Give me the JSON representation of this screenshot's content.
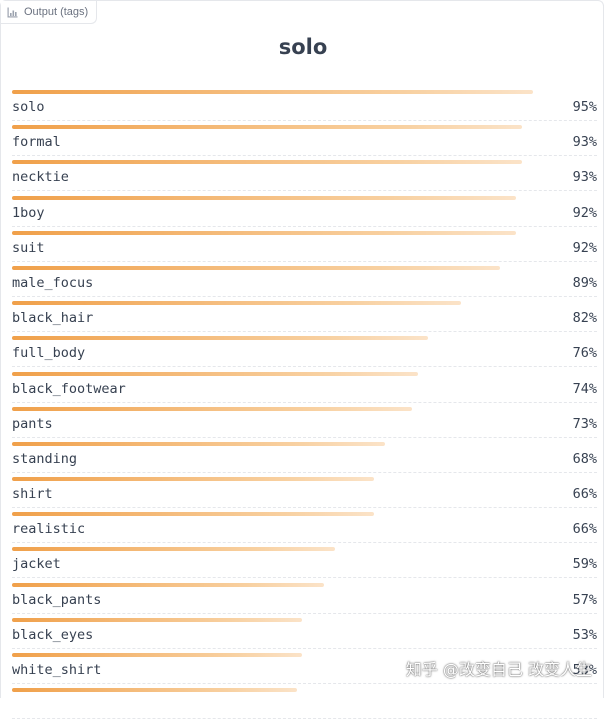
{
  "panel": {
    "tab_label": "Output (tags)",
    "heading": "solo"
  },
  "colors": {
    "bar_start": "#f0a04a",
    "bar_end": "#fbe3c8",
    "text": "#374151"
  },
  "tags": [
    {
      "label": "solo",
      "confidence": 95,
      "percent": "95%"
    },
    {
      "label": "formal",
      "confidence": 93,
      "percent": "93%"
    },
    {
      "label": "necktie",
      "confidence": 93,
      "percent": "93%"
    },
    {
      "label": "1boy",
      "confidence": 92,
      "percent": "92%"
    },
    {
      "label": "suit",
      "confidence": 92,
      "percent": "92%"
    },
    {
      "label": "male_focus",
      "confidence": 89,
      "percent": "89%"
    },
    {
      "label": "black_hair",
      "confidence": 82,
      "percent": "82%"
    },
    {
      "label": "full_body",
      "confidence": 76,
      "percent": "76%"
    },
    {
      "label": "black_footwear",
      "confidence": 74,
      "percent": "74%"
    },
    {
      "label": "pants",
      "confidence": 73,
      "percent": "73%"
    },
    {
      "label": "standing",
      "confidence": 68,
      "percent": "68%"
    },
    {
      "label": "shirt",
      "confidence": 66,
      "percent": "66%"
    },
    {
      "label": "realistic",
      "confidence": 66,
      "percent": "66%"
    },
    {
      "label": "jacket",
      "confidence": 59,
      "percent": "59%"
    },
    {
      "label": "black_pants",
      "confidence": 57,
      "percent": "57%"
    },
    {
      "label": "black_eyes",
      "confidence": 53,
      "percent": "53%"
    },
    {
      "label": "white_shirt",
      "confidence": 53,
      "percent": "53%"
    },
    {
      "label": "",
      "confidence": 52,
      "percent": ""
    }
  ],
  "watermark": "知乎 @改变自己 改变人生"
}
